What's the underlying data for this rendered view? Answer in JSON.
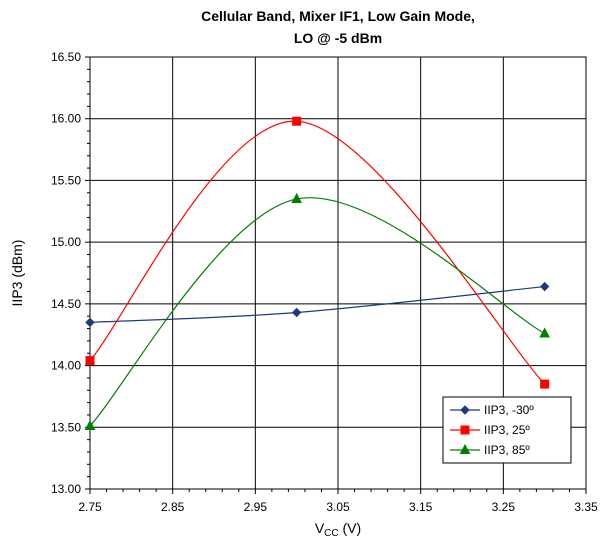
{
  "chart_data": {
    "type": "line",
    "title_line1": "Cellular Band, Mixer IF1, Low Gain Mode,",
    "title_line2": "LO @ -5 dBm",
    "xlabel_main": "V",
    "xlabel_sub": "CC",
    "xlabel_unit": " (V)",
    "ylabel": "IIP3 (dBm)",
    "xlim": [
      2.75,
      3.35
    ],
    "ylim": [
      13.0,
      16.5
    ],
    "x_ticks": [
      "2.75",
      "2.85",
      "2.95",
      "3.05",
      "3.15",
      "3.25",
      "3.35"
    ],
    "y_ticks": [
      "13.00",
      "13.50",
      "14.00",
      "14.50",
      "15.00",
      "15.50",
      "16.00",
      "16.50"
    ],
    "grid": true,
    "legend_position": "bottom-right",
    "series": [
      {
        "name": "IIP3, -30º",
        "color": "#1f3a7a",
        "marker": "diamond",
        "x": [
          2.75,
          3.0,
          3.3
        ],
        "y": [
          14.35,
          14.43,
          14.64
        ]
      },
      {
        "name": "IIP3, 25º",
        "color": "#ff0000",
        "marker": "square",
        "x": [
          2.75,
          3.0,
          3.3
        ],
        "y": [
          14.04,
          15.98,
          13.85
        ]
      },
      {
        "name": "IIP3, 85º",
        "color": "#008000",
        "marker": "triangle",
        "x": [
          2.75,
          3.0,
          3.3
        ],
        "y": [
          13.51,
          15.35,
          14.26
        ]
      }
    ]
  }
}
